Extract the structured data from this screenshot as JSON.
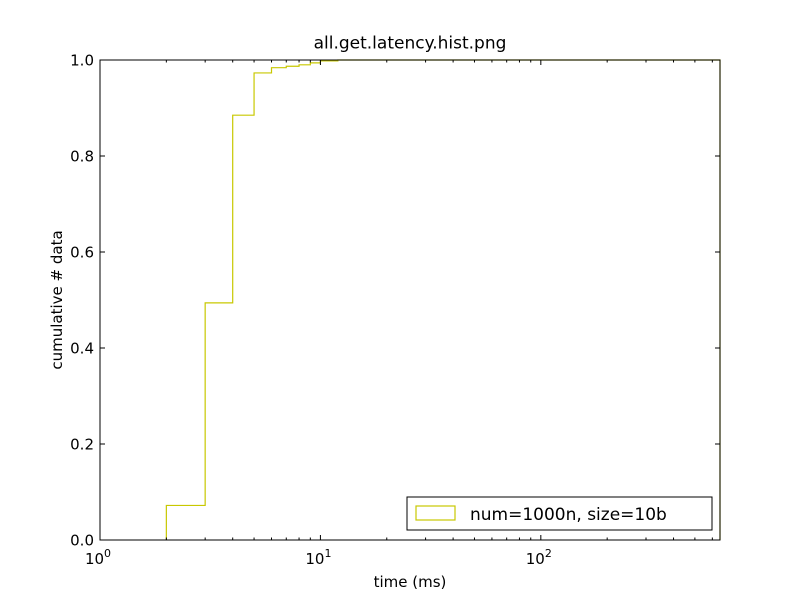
{
  "chart_data": {
    "type": "line",
    "subtype": "cumulative-step-histogram",
    "title": "all.get.latency.hist.png",
    "xlabel": "time (ms)",
    "ylabel": "cumulative # data",
    "xscale": "log",
    "xlim": [
      1,
      650
    ],
    "ylim": [
      0,
      1.0
    ],
    "grid": false,
    "legend_position": "lower-right",
    "x_ticks": [
      {
        "value": 1,
        "base": "10",
        "exp": "0"
      },
      {
        "value": 10,
        "base": "10",
        "exp": "1"
      },
      {
        "value": 100,
        "base": "10",
        "exp": "2"
      }
    ],
    "y_ticks": [
      {
        "value": 0,
        "label": "0.0"
      },
      {
        "value": 0.2,
        "label": "0.2"
      },
      {
        "value": 0.4,
        "label": "0.4"
      },
      {
        "value": 0.6,
        "label": "0.6"
      },
      {
        "value": 0.8,
        "label": "0.8"
      },
      {
        "value": 1.0,
        "label": "1.0"
      }
    ],
    "series": [
      {
        "name": "num=1000n, size=10b",
        "color": "#c8c800",
        "x": [
          2,
          3,
          4,
          5,
          6,
          7,
          8,
          9,
          10,
          12,
          650
        ],
        "values": [
          0.072,
          0.494,
          0.885,
          0.973,
          0.984,
          0.987,
          0.99,
          0.994,
          0.998,
          1.0,
          1.0
        ]
      }
    ]
  }
}
